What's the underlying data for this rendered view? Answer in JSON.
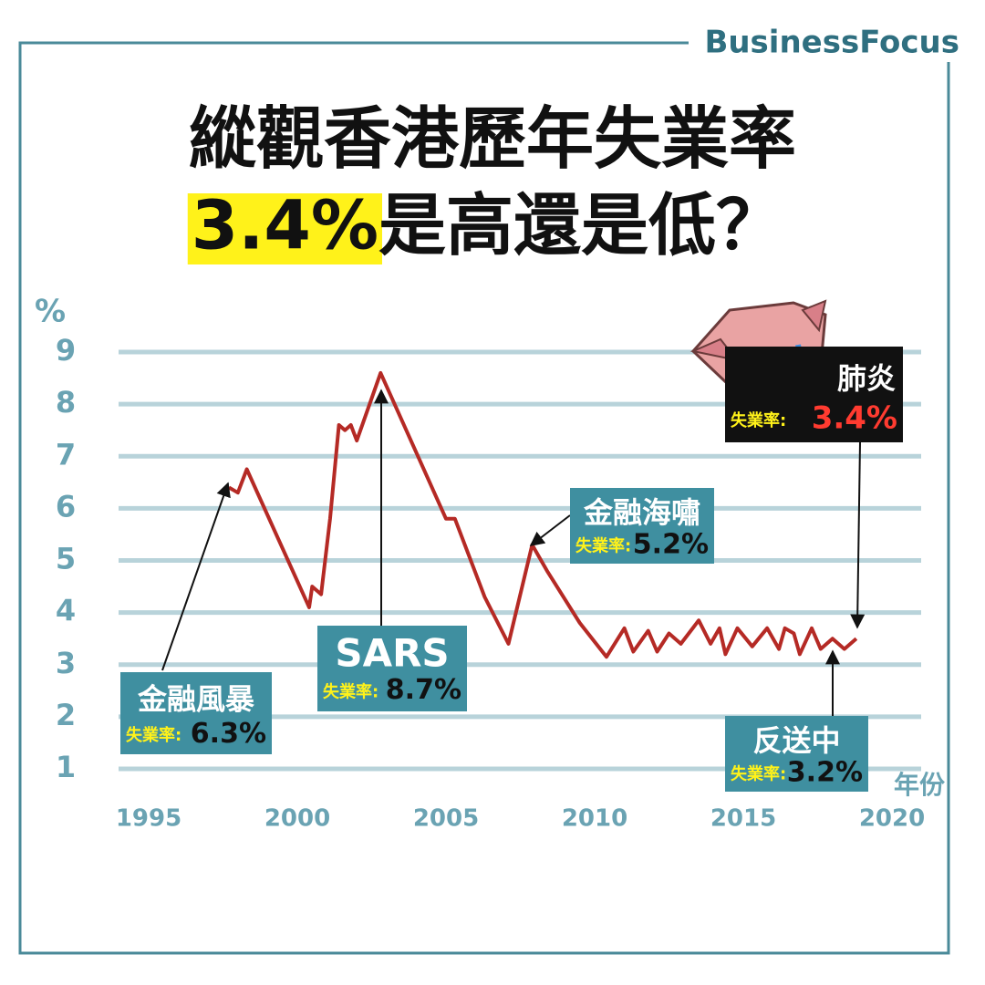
{
  "brand": "BusinessFocus",
  "title_lines": [
    "縱觀香港歷年失業率"
  ],
  "headline_highlight": "3.4%",
  "headline_rest": "是高還是低？",
  "chart_data": {
    "type": "line",
    "y_label": "%",
    "x_label": "年份",
    "x": [
      1997.7,
      1998.0,
      1998.3,
      2000.4,
      2000.5,
      2000.8,
      2001.1,
      2001.4,
      2001.6,
      2001.8,
      2002.0,
      2002.8,
      2005.0,
      2005.3,
      2006.3,
      2007.1,
      2007.9,
      2008.4,
      2009.5,
      2010.4,
      2011.0,
      2011.3,
      2011.8,
      2012.1,
      2012.5,
      2012.9,
      2013.5,
      2013.9,
      2014.2,
      2014.4,
      2014.8,
      2015.3,
      2015.8,
      2016.2,
      2016.4,
      2016.7,
      2016.9,
      2017.3,
      2017.6,
      2018.0,
      2018.4,
      2018.8
    ],
    "series": [
      {
        "color": "#b52a25",
        "values": [
          6.4,
          6.3,
          6.75,
          4.1,
          4.5,
          4.35,
          5.8,
          7.6,
          7.5,
          7.6,
          7.3,
          8.6,
          5.8,
          5.8,
          4.3,
          3.4,
          5.3,
          4.8,
          3.8,
          3.15,
          3.7,
          3.25,
          3.65,
          3.25,
          3.6,
          3.4,
          3.85,
          3.4,
          3.7,
          3.2,
          3.7,
          3.35,
          3.7,
          3.3,
          3.7,
          3.6,
          3.2,
          3.7,
          3.3,
          3.5,
          3.3,
          3.5
        ]
      }
    ],
    "xlim": [
      1995,
      2020
    ],
    "xticks": [
      1995,
      2000,
      2005,
      2010,
      2015,
      2020
    ],
    "ylim": [
      1,
      9
    ],
    "yticks": [
      1,
      2,
      3,
      4,
      5,
      6,
      7,
      8,
      9
    ],
    "grid": true,
    "annotations": [
      {
        "label": "金融風暴",
        "rate_label": "失業率:",
        "rate": "6.3%"
      },
      {
        "label": "SARS",
        "rate_label": "失業率:",
        "rate": "8.7%"
      },
      {
        "label": "金融海嘯",
        "rate_label": "失業率:",
        "rate": "5.2%"
      },
      {
        "label": "反送中",
        "rate_label": "失業率:",
        "rate": "3.2%"
      },
      {
        "label": "肺炎",
        "rate_label": "失業率:",
        "rate": "3.4%"
      }
    ]
  }
}
